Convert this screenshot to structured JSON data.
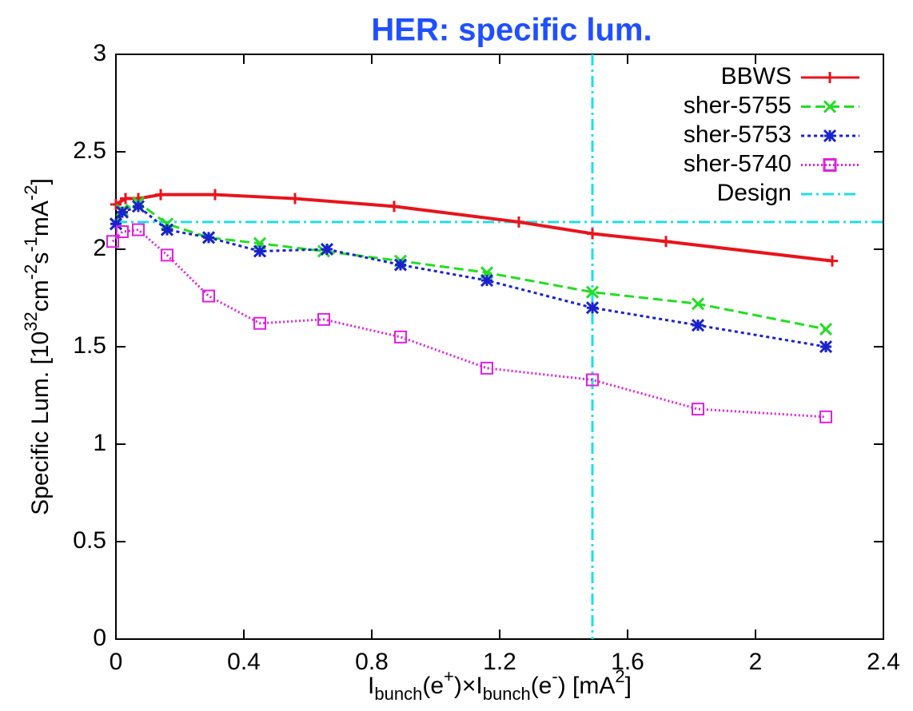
{
  "chart_data": {
    "type": "line",
    "title": "HER: specific lum.",
    "ylabel": [
      {
        "text": "Specific Lum. [10"
      },
      {
        "text": "32",
        "shift": "sup"
      },
      {
        "text": "cm"
      },
      {
        "text": "-2",
        "shift": "sup"
      },
      {
        "text": "s"
      },
      {
        "text": "-1",
        "shift": "sup"
      },
      {
        "text": "mA"
      },
      {
        "text": "-2",
        "shift": "sup"
      },
      {
        "text": "]"
      }
    ],
    "xlabel": [
      {
        "text": "I"
      },
      {
        "text": "bunch",
        "shift": "sub"
      },
      {
        "text": "(e"
      },
      {
        "text": "+",
        "shift": "sup"
      },
      {
        "text": ")×I"
      },
      {
        "text": "bunch",
        "shift": "sub"
      },
      {
        "text": "(e"
      },
      {
        "text": "-",
        "shift": "sup"
      },
      {
        "text": ") [mA"
      },
      {
        "text": "2",
        "shift": "sup"
      },
      {
        "text": "]"
      }
    ],
    "xlim": [
      0,
      2.4
    ],
    "xticks": [
      0,
      0.4,
      0.8,
      1.2,
      1.6,
      2,
      2.4
    ],
    "ylim": [
      0,
      3
    ],
    "yticks": [
      0,
      0.5,
      1,
      1.5,
      2,
      2.5,
      3
    ],
    "legend": "top-right",
    "series": [
      {
        "name": "BBWS",
        "color": "#e8141c",
        "dash": "solid",
        "marker": "plus",
        "x": [
          0.0,
          0.03,
          0.07,
          0.14,
          0.31,
          0.56,
          0.87,
          1.26,
          1.49,
          1.72,
          2.24
        ],
        "values": [
          2.23,
          2.26,
          2.26,
          2.28,
          2.28,
          2.26,
          2.22,
          2.14,
          2.08,
          2.04,
          1.94
        ]
      },
      {
        "name": "sher-5755",
        "color": "#22dd22",
        "dash": "dashed",
        "marker": "cross",
        "x": [
          0.0,
          0.02,
          0.07,
          0.16,
          0.29,
          0.45,
          0.65,
          0.89,
          1.16,
          1.49,
          1.82,
          2.22
        ],
        "values": [
          2.13,
          2.2,
          2.24,
          2.13,
          2.06,
          2.03,
          1.99,
          1.94,
          1.88,
          1.78,
          1.72,
          1.59
        ]
      },
      {
        "name": "sher-5753",
        "color": "#1a22cc",
        "dash": "dotted",
        "marker": "star",
        "x": [
          0.0,
          0.02,
          0.07,
          0.16,
          0.29,
          0.45,
          0.66,
          0.89,
          1.16,
          1.49,
          1.82,
          2.22
        ],
        "values": [
          2.13,
          2.19,
          2.22,
          2.1,
          2.06,
          1.99,
          2.0,
          1.92,
          1.84,
          1.7,
          1.61,
          1.5
        ]
      },
      {
        "name": "sher-5740",
        "color": "#e020e0",
        "dash": "fine",
        "marker": "square",
        "x": [
          -0.01,
          0.02,
          0.07,
          0.16,
          0.29,
          0.45,
          0.65,
          0.89,
          1.16,
          1.49,
          1.82,
          2.22
        ],
        "values": [
          2.04,
          2.09,
          2.1,
          1.97,
          1.76,
          1.62,
          1.64,
          1.55,
          1.39,
          1.33,
          1.18,
          1.14
        ]
      }
    ],
    "design": {
      "name": "Design",
      "color": "#22dde8",
      "x": 1.49,
      "y": 2.14
    }
  }
}
